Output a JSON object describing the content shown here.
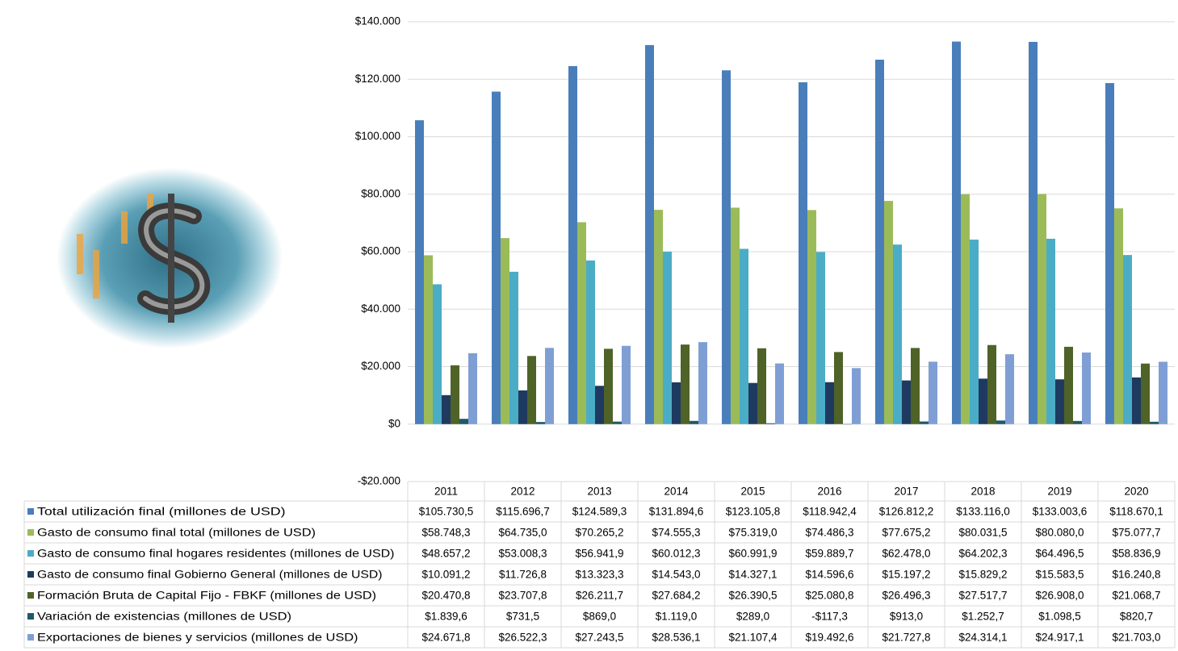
{
  "chart_data": {
    "type": "bar",
    "categories": [
      "2011",
      "2012",
      "2013",
      "2014",
      "2015",
      "2016",
      "2017",
      "2018",
      "2019",
      "2020"
    ],
    "series": [
      {
        "name": "Total utilización final (millones de USD)",
        "color": "#4a7ebb",
        "values": [
          105730.5,
          115696.7,
          124589.3,
          131894.6,
          123105.8,
          118942.4,
          126812.2,
          133116.0,
          133003.6,
          118670.1
        ],
        "value_labels": [
          "$105.730,5",
          "$115.696,7",
          "$124.589,3",
          "$131.894,6",
          "$123.105,8",
          "$118.942,4",
          "$126.812,2",
          "$133.116,0",
          "$133.003,6",
          "$118.670,1"
        ]
      },
      {
        "name": "Gasto de consumo final total (millones de USD)",
        "color": "#9bbb59",
        "values": [
          58748.3,
          64735.0,
          70265.2,
          74555.3,
          75319.0,
          74486.3,
          77675.2,
          80031.5,
          80080.0,
          75077.7
        ],
        "value_labels": [
          "$58.748,3",
          "$64.735,0",
          "$70.265,2",
          "$74.555,3",
          "$75.319,0",
          "$74.486,3",
          "$77.675,2",
          "$80.031,5",
          "$80.080,0",
          "$75.077,7"
        ]
      },
      {
        "name": "Gasto de consumo final hogares residentes (millones de USD)",
        "color": "#4bacc6",
        "values": [
          48657.2,
          53008.3,
          56941.9,
          60012.3,
          60991.9,
          59889.7,
          62478.0,
          64202.3,
          64496.5,
          58836.9
        ],
        "value_labels": [
          "$48.657,2",
          "$53.008,3",
          "$56.941,9",
          "$60.012,3",
          "$60.991,9",
          "$59.889,7",
          "$62.478,0",
          "$64.202,3",
          "$64.496,5",
          "$58.836,9"
        ]
      },
      {
        "name": "Gasto de consumo final Gobierno General (millones de USD)",
        "color": "#1f3a60",
        "values": [
          10091.2,
          11726.8,
          13323.3,
          14543.0,
          14327.1,
          14596.6,
          15197.2,
          15829.2,
          15583.5,
          16240.8
        ],
        "value_labels": [
          "$10.091,2",
          "$11.726,8",
          "$13.323,3",
          "$14.543,0",
          "$14.327,1",
          "$14.596,6",
          "$15.197,2",
          "$15.829,2",
          "$15.583,5",
          "$16.240,8"
        ]
      },
      {
        "name": "Formación Bruta de Capital Fijo - FBKF (millones de USD)",
        "color": "#4f6228",
        "values": [
          20470.8,
          23707.8,
          26211.7,
          27684.2,
          26390.5,
          25080.8,
          26496.3,
          27517.7,
          26908.0,
          21068.7
        ],
        "value_labels": [
          "$20.470,8",
          "$23.707,8",
          "$26.211,7",
          "$27.684,2",
          "$26.390,5",
          "$25.080,8",
          "$26.496,3",
          "$27.517,7",
          "$26.908,0",
          "$21.068,7"
        ]
      },
      {
        "name": "Variación de existencias (millones de USD)",
        "color": "#215968",
        "values": [
          1839.6,
          731.5,
          869.0,
          1119.0,
          289.0,
          -117.3,
          913.0,
          1252.7,
          1098.5,
          820.7
        ],
        "value_labels": [
          "$1.839,6",
          "$731,5",
          "$869,0",
          "$1.119,0",
          "$289,0",
          "-$117,3",
          "$913,0",
          "$1.252,7",
          "$1.098,5",
          "$820,7"
        ]
      },
      {
        "name": "Exportaciones de bienes y servicios (millones de USD)",
        "color": "#7f9fd4",
        "values": [
          24671.8,
          26522.3,
          27243.5,
          28536.1,
          21107.4,
          19492.6,
          21727.8,
          24314.1,
          24917.1,
          21703.0
        ],
        "value_labels": [
          "$24.671,8",
          "$26.522,3",
          "$27.243,5",
          "$28.536,1",
          "$21.107,4",
          "$19.492,6",
          "$21.727,8",
          "$24.314,1",
          "$24.917,1",
          "$21.703,0"
        ]
      }
    ],
    "ylim": [
      -20000,
      140000
    ],
    "yticks": [
      {
        "value": -20000,
        "label": "-$20.000"
      },
      {
        "value": 0,
        "label": "$0"
      },
      {
        "value": 20000,
        "label": "$20.000"
      },
      {
        "value": 40000,
        "label": "$40.000"
      },
      {
        "value": 60000,
        "label": "$60.000"
      },
      {
        "value": 80000,
        "label": "$80.000"
      },
      {
        "value": 100000,
        "label": "$100.000"
      },
      {
        "value": 120000,
        "label": "$120.000"
      },
      {
        "value": 140000,
        "label": "$140.000"
      }
    ],
    "grid": true
  }
}
